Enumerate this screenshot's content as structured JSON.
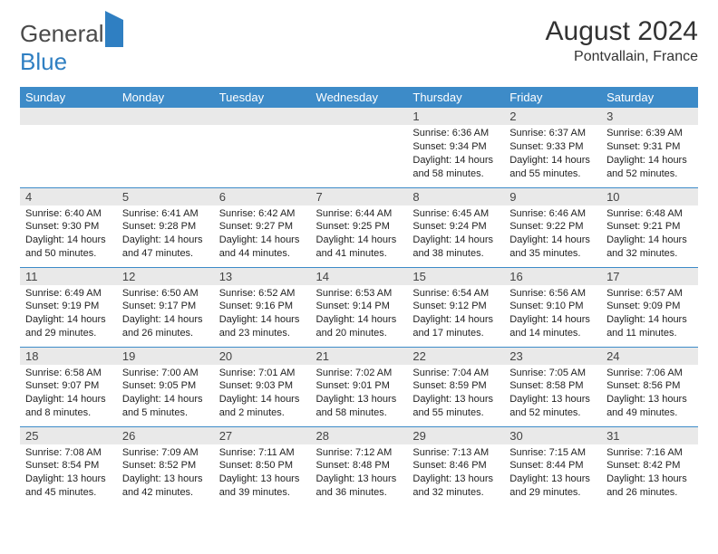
{
  "logo": {
    "text1": "General",
    "text2": "Blue"
  },
  "header": {
    "title": "August 2024",
    "location": "Pontvallain, France"
  },
  "colors": {
    "header_bg": "#3d8bc8",
    "header_fg": "#ffffff",
    "daynum_bg": "#e9e9e9",
    "cell_border": "#3d8bc8",
    "logo_gray": "#4a4a4a",
    "logo_blue": "#2f7fc2"
  },
  "weekdays": [
    "Sunday",
    "Monday",
    "Tuesday",
    "Wednesday",
    "Thursday",
    "Friday",
    "Saturday"
  ],
  "weeks": [
    [
      null,
      null,
      null,
      null,
      {
        "n": "1",
        "sr": "6:36 AM",
        "ss": "9:34 PM",
        "dl": "14 hours and 58 minutes."
      },
      {
        "n": "2",
        "sr": "6:37 AM",
        "ss": "9:33 PM",
        "dl": "14 hours and 55 minutes."
      },
      {
        "n": "3",
        "sr": "6:39 AM",
        "ss": "9:31 PM",
        "dl": "14 hours and 52 minutes."
      }
    ],
    [
      {
        "n": "4",
        "sr": "6:40 AM",
        "ss": "9:30 PM",
        "dl": "14 hours and 50 minutes."
      },
      {
        "n": "5",
        "sr": "6:41 AM",
        "ss": "9:28 PM",
        "dl": "14 hours and 47 minutes."
      },
      {
        "n": "6",
        "sr": "6:42 AM",
        "ss": "9:27 PM",
        "dl": "14 hours and 44 minutes."
      },
      {
        "n": "7",
        "sr": "6:44 AM",
        "ss": "9:25 PM",
        "dl": "14 hours and 41 minutes."
      },
      {
        "n": "8",
        "sr": "6:45 AM",
        "ss": "9:24 PM",
        "dl": "14 hours and 38 minutes."
      },
      {
        "n": "9",
        "sr": "6:46 AM",
        "ss": "9:22 PM",
        "dl": "14 hours and 35 minutes."
      },
      {
        "n": "10",
        "sr": "6:48 AM",
        "ss": "9:21 PM",
        "dl": "14 hours and 32 minutes."
      }
    ],
    [
      {
        "n": "11",
        "sr": "6:49 AM",
        "ss": "9:19 PM",
        "dl": "14 hours and 29 minutes."
      },
      {
        "n": "12",
        "sr": "6:50 AM",
        "ss": "9:17 PM",
        "dl": "14 hours and 26 minutes."
      },
      {
        "n": "13",
        "sr": "6:52 AM",
        "ss": "9:16 PM",
        "dl": "14 hours and 23 minutes."
      },
      {
        "n": "14",
        "sr": "6:53 AM",
        "ss": "9:14 PM",
        "dl": "14 hours and 20 minutes."
      },
      {
        "n": "15",
        "sr": "6:54 AM",
        "ss": "9:12 PM",
        "dl": "14 hours and 17 minutes."
      },
      {
        "n": "16",
        "sr": "6:56 AM",
        "ss": "9:10 PM",
        "dl": "14 hours and 14 minutes."
      },
      {
        "n": "17",
        "sr": "6:57 AM",
        "ss": "9:09 PM",
        "dl": "14 hours and 11 minutes."
      }
    ],
    [
      {
        "n": "18",
        "sr": "6:58 AM",
        "ss": "9:07 PM",
        "dl": "14 hours and 8 minutes."
      },
      {
        "n": "19",
        "sr": "7:00 AM",
        "ss": "9:05 PM",
        "dl": "14 hours and 5 minutes."
      },
      {
        "n": "20",
        "sr": "7:01 AM",
        "ss": "9:03 PM",
        "dl": "14 hours and 2 minutes."
      },
      {
        "n": "21",
        "sr": "7:02 AM",
        "ss": "9:01 PM",
        "dl": "13 hours and 58 minutes."
      },
      {
        "n": "22",
        "sr": "7:04 AM",
        "ss": "8:59 PM",
        "dl": "13 hours and 55 minutes."
      },
      {
        "n": "23",
        "sr": "7:05 AM",
        "ss": "8:58 PM",
        "dl": "13 hours and 52 minutes."
      },
      {
        "n": "24",
        "sr": "7:06 AM",
        "ss": "8:56 PM",
        "dl": "13 hours and 49 minutes."
      }
    ],
    [
      {
        "n": "25",
        "sr": "7:08 AM",
        "ss": "8:54 PM",
        "dl": "13 hours and 45 minutes."
      },
      {
        "n": "26",
        "sr": "7:09 AM",
        "ss": "8:52 PM",
        "dl": "13 hours and 42 minutes."
      },
      {
        "n": "27",
        "sr": "7:11 AM",
        "ss": "8:50 PM",
        "dl": "13 hours and 39 minutes."
      },
      {
        "n": "28",
        "sr": "7:12 AM",
        "ss": "8:48 PM",
        "dl": "13 hours and 36 minutes."
      },
      {
        "n": "29",
        "sr": "7:13 AM",
        "ss": "8:46 PM",
        "dl": "13 hours and 32 minutes."
      },
      {
        "n": "30",
        "sr": "7:15 AM",
        "ss": "8:44 PM",
        "dl": "13 hours and 29 minutes."
      },
      {
        "n": "31",
        "sr": "7:16 AM",
        "ss": "8:42 PM",
        "dl": "13 hours and 26 minutes."
      }
    ]
  ],
  "labels": {
    "sunrise": "Sunrise: ",
    "sunset": "Sunset: ",
    "daylight": "Daylight: "
  }
}
